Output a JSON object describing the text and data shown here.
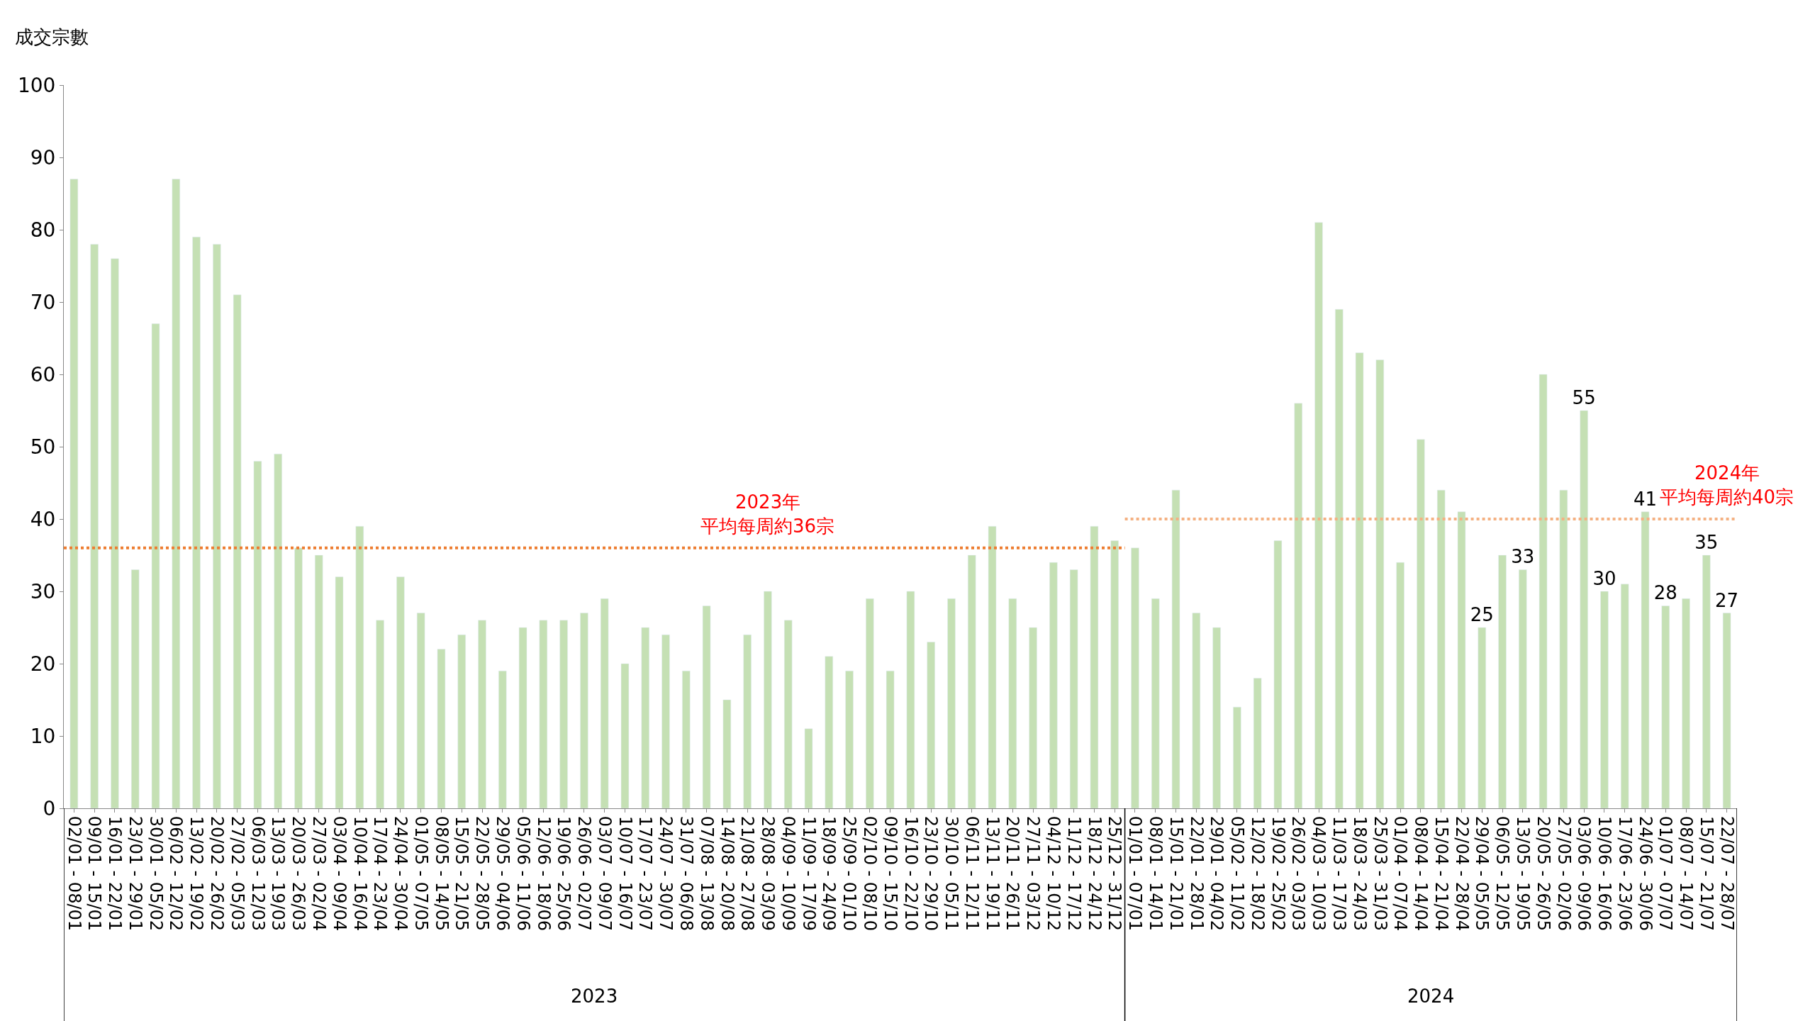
{
  "chart_data": {
    "type": "bar",
    "ylabel": "成交宗數",
    "categories": [
      "02/01 - 08/01",
      "09/01 - 15/01",
      "16/01 - 22/01",
      "23/01 - 29/01",
      "30/01 - 05/02",
      "06/02 - 12/02",
      "13/02 - 19/02",
      "20/02 - 26/02",
      "27/02 - 05/03",
      "06/03 - 12/03",
      "13/03 - 19/03",
      "20/03 - 26/03",
      "27/03 - 02/04",
      "03/04 - 09/04",
      "10/04 - 16/04",
      "17/04 - 23/04",
      "24/04 - 30/04",
      "01/05 - 07/05",
      "08/05 - 14/05",
      "15/05 - 21/05",
      "22/05 - 28/05",
      "29/05 - 04/06",
      "05/06 - 11/06",
      "12/06 - 18/06",
      "19/06 - 25/06",
      "26/06 - 02/07",
      "03/07 - 09/07",
      "10/07 - 16/07",
      "17/07 - 23/07",
      "24/07 - 30/07",
      "31/07 - 06/08",
      "07/08 - 13/08",
      "14/08 - 20/08",
      "21/08 - 27/08",
      "28/08 - 03/09",
      "04/09 - 10/09",
      "11/09 - 17/09",
      "18/09 - 24/09",
      "25/09 - 01/10",
      "02/10 - 08/10",
      "09/10 - 15/10",
      "16/10 - 22/10",
      "23/10 - 29/10",
      "30/10 - 05/11",
      "06/11 - 12/11",
      "13/11 - 19/11",
      "20/11 - 26/11",
      "27/11 - 03/12",
      "04/12 - 10/12",
      "11/12 - 17/12",
      "18/12 - 24/12",
      "25/12 - 31/12",
      "01/01 - 07/01",
      "08/01 - 14/01",
      "15/01 - 21/01",
      "22/01 - 28/01",
      "29/01 - 04/02",
      "05/02 - 11/02",
      "12/02 - 18/02",
      "19/02 - 25/02",
      "26/02 - 03/03",
      "04/03 - 10/03",
      "11/03 - 17/03",
      "18/03 - 24/03",
      "25/03 - 31/03",
      "01/04 - 07/04",
      "08/04 - 14/04",
      "15/04 - 21/04",
      "22/04 - 28/04",
      "29/04 - 05/05",
      "06/05 - 12/05",
      "13/05 - 19/05",
      "20/05 - 26/05",
      "27/05 - 02/06",
      "03/06 - 09/06",
      "10/06 - 16/06",
      "17/06 - 23/06",
      "24/06 - 30/06",
      "01/07 - 07/07",
      "08/07 - 14/07",
      "15/07 - 21/07",
      "22/07 - 28/07"
    ],
    "series": [
      {
        "color": "#c5e0b4",
        "values": [
          87,
          78,
          76,
          33,
          67,
          87,
          79,
          78,
          71,
          48,
          49,
          36,
          35,
          32,
          39,
          26,
          32,
          27,
          22,
          24,
          26,
          19,
          25,
          26,
          26,
          27,
          29,
          20,
          25,
          24,
          19,
          28,
          15,
          24,
          30,
          26,
          11,
          21,
          19,
          29,
          19,
          30,
          23,
          29,
          35,
          39,
          29,
          25,
          34,
          33,
          39,
          37,
          36,
          29,
          44,
          27,
          25,
          14,
          18,
          37,
          56,
          81,
          69,
          63,
          62,
          34,
          51,
          44,
          41,
          25,
          35,
          33,
          60,
          44,
          55,
          30,
          31,
          41,
          28,
          29,
          35,
          27
        ],
        "value_labels": [
          null,
          null,
          null,
          null,
          null,
          null,
          null,
          null,
          null,
          null,
          null,
          null,
          null,
          null,
          null,
          null,
          null,
          null,
          null,
          null,
          null,
          null,
          null,
          null,
          null,
          null,
          null,
          null,
          null,
          null,
          null,
          null,
          null,
          null,
          null,
          null,
          null,
          null,
          null,
          null,
          null,
          null,
          null,
          null,
          null,
          null,
          null,
          null,
          null,
          null,
          null,
          null,
          null,
          null,
          null,
          null,
          null,
          null,
          null,
          null,
          null,
          null,
          null,
          null,
          null,
          null,
          null,
          null,
          null,
          "25",
          null,
          "33",
          null,
          null,
          "55",
          "30",
          null,
          "41",
          "28",
          null,
          "35",
          "27"
        ]
      }
    ],
    "ref_lines": [
      {
        "axis": "y",
        "value": 36,
        "color": "#ed7d31",
        "line_style": "dotted"
      },
      {
        "axis": "y",
        "value": 40,
        "color": "#f4b183",
        "line_style": "dotted"
      }
    ],
    "annotations": [
      {
        "text": "2023年",
        "x": "28/08 - 03/09",
        "y": 36
      },
      {
        "text": "平均每周約36宗",
        "x": "28/08 - 03/09",
        "y": 36
      },
      {
        "text": "2024年",
        "x": "22/07 - 28/07",
        "y": 40
      },
      {
        "text": "平均每周約40宗",
        "x": "22/07 - 28/07",
        "y": 40
      },
      "2023",
      "2024"
    ],
    "ylim": [
      0,
      100
    ],
    "yticks": [
      0,
      10,
      20,
      30,
      40,
      50,
      60,
      70,
      80,
      90,
      100
    ]
  }
}
